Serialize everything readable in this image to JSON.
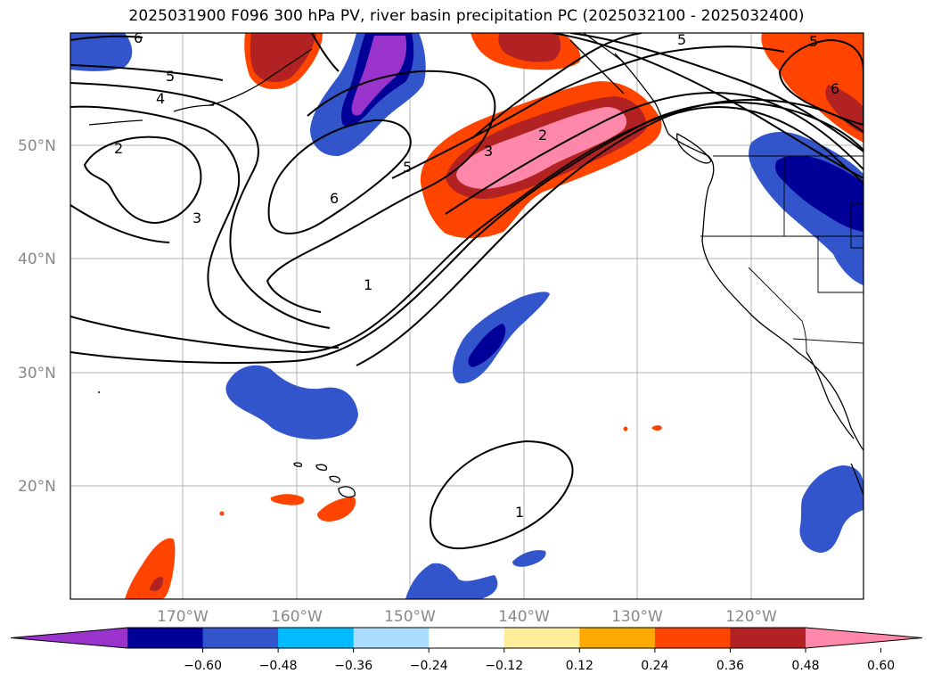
{
  "title": "2025031900 F096 300 hPa PV, river basin precipitation PC (2025032100 - 2025032400)",
  "lat_labels": [
    "50°N",
    "40°N",
    "30°N",
    "20°N"
  ],
  "lon_labels": [
    "170°W",
    "160°W",
    "150°W",
    "140°W",
    "130°W",
    "120°W"
  ],
  "contour_labels": [
    "6",
    "5",
    "4",
    "2",
    "3",
    "6",
    "5",
    "3",
    "2",
    "1",
    "5",
    "6",
    "1",
    "5"
  ],
  "colorbar": {
    "colors": [
      "#9933cc",
      "#000099",
      "#3355cc",
      "#00bbff",
      "#aaddff",
      "#ffffff",
      "#ffee99",
      "#ffaa00",
      "#ff4400",
      "#b22222",
      "#ff88aa"
    ],
    "ticks": [
      "−0.60",
      "−0.48",
      "−0.36",
      "−0.24",
      "−0.12",
      "0.12",
      "0.24",
      "0.36",
      "0.48",
      "0.60"
    ]
  }
}
